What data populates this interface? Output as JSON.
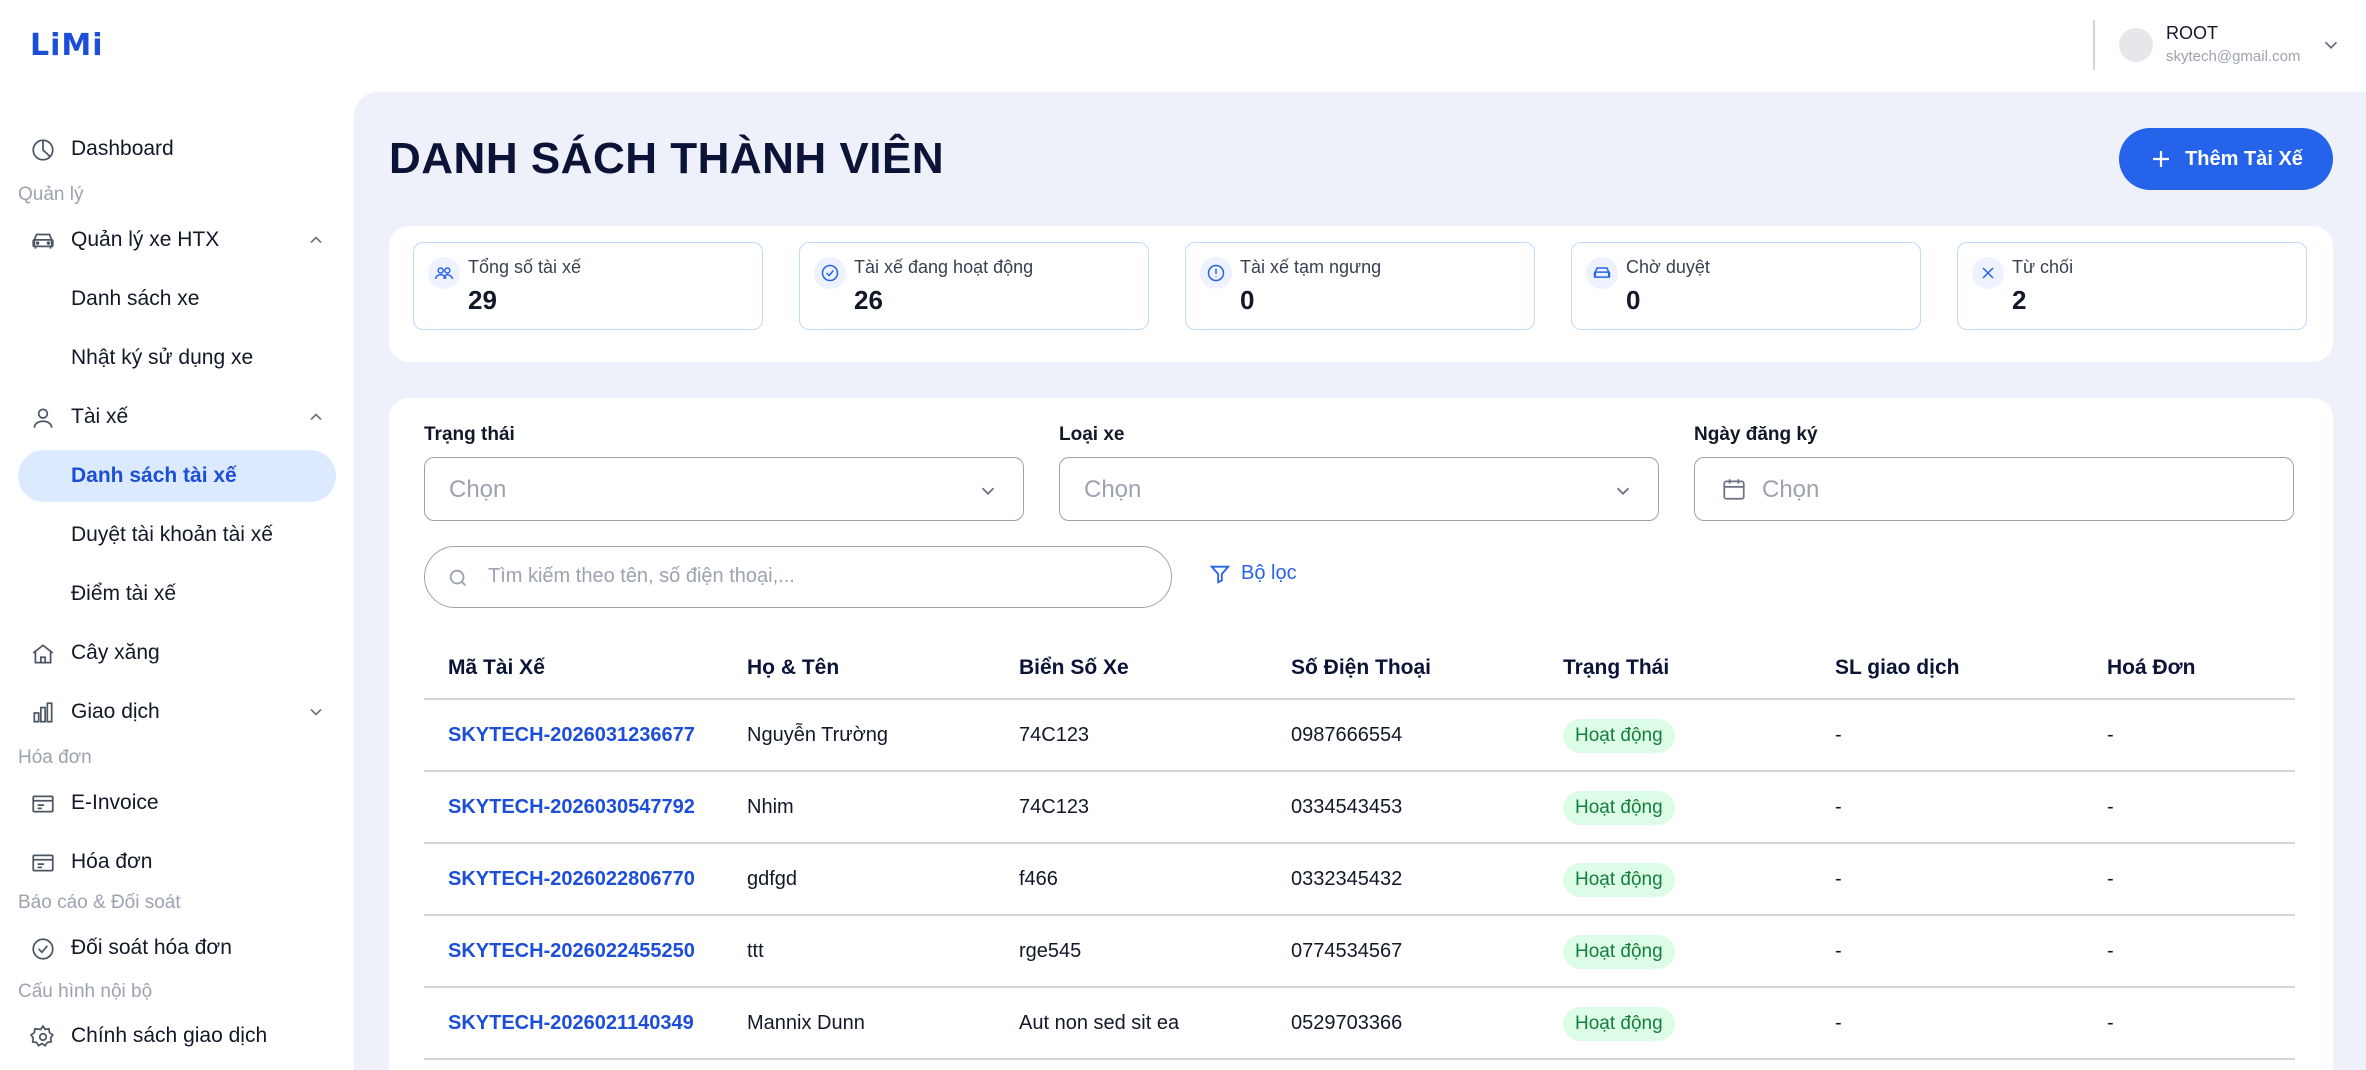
{
  "header": {
    "logo": "LiMi",
    "user_name": "ROOT",
    "user_email": "skytech@gmail.com"
  },
  "sidebar": {
    "dashboard": "Dashboard",
    "section_manage": "Quản lý",
    "vehicle_mgmt": "Quản lý xe HTX",
    "vehicle_list": "Danh sách xe",
    "vehicle_log": "Nhật ký sử dụng xe",
    "drivers": "Tài xế",
    "driver_list": "Danh sách tài xế",
    "driver_approve": "Duyệt tài khoản tài xế",
    "driver_points": "Điểm tài xế",
    "gas_station": "Cây xăng",
    "transactions": "Giao dịch",
    "section_invoice": "Hóa đơn",
    "einvoice": "E-Invoice",
    "invoice": "Hóa đơn",
    "section_report": "Báo cáo & Đối soát",
    "reconcile": "Đối soát hóa đơn",
    "section_config": "Cấu hình nội bộ",
    "policy": "Chính sách giao dịch"
  },
  "main": {
    "title": "DANH SÁCH THÀNH VIÊN",
    "add_button": "Thêm Tài Xế",
    "stats": [
      {
        "label": "Tổng số tài xế",
        "value": "29",
        "icon": "users-icon"
      },
      {
        "label": "Tài xế đang hoạt động",
        "value": "26",
        "icon": "check-badge-icon"
      },
      {
        "label": "Tài xế tạm ngưng",
        "value": "0",
        "icon": "pause-info-icon"
      },
      {
        "label": "Chờ duyệt",
        "value": "0",
        "icon": "car-icon"
      },
      {
        "label": "Từ chối",
        "value": "2",
        "icon": "close-icon"
      }
    ],
    "filters": {
      "status_label": "Trạng thái",
      "status_placeholder": "Chọn",
      "vehicle_type_label": "Loại xe",
      "vehicle_type_placeholder": "Chọn",
      "reg_date_label": "Ngày đăng ký",
      "reg_date_placeholder": "Chọn",
      "search_placeholder": "Tìm kiếm theo tên, số điện thoại,...",
      "filter_button": "Bộ lọc"
    },
    "table": {
      "headers": [
        "Mã Tài Xế",
        "Họ & Tên",
        "Biển Số Xe",
        "Số Điện Thoại",
        "Trạng Thái",
        "SL giao dịch",
        "Hoá Đơn"
      ],
      "rows": [
        {
          "code": "SKYTECH-2026031236677",
          "name": "Nguyễn Trường",
          "plate": "74C123",
          "phone": "0987666554",
          "status": "Hoạt động",
          "tx": "-",
          "invoice": "-"
        },
        {
          "code": "SKYTECH-2026030547792",
          "name": "Nhim",
          "plate": "74C123",
          "phone": "0334543453",
          "status": "Hoạt động",
          "tx": "-",
          "invoice": "-"
        },
        {
          "code": "SKYTECH-2026022806770",
          "name": "gdfgd",
          "plate": "f466",
          "phone": "0332345432",
          "status": "Hoạt động",
          "tx": "-",
          "invoice": "-"
        },
        {
          "code": "SKYTECH-2026022455250",
          "name": "ttt",
          "plate": "rge545",
          "phone": "0774534567",
          "status": "Hoạt động",
          "tx": "-",
          "invoice": "-"
        },
        {
          "code": "SKYTECH-2026021140349",
          "name": "Mannix Dunn",
          "plate": "Aut non sed sit ea",
          "phone": "0529703366",
          "status": "Hoạt động",
          "tx": "-",
          "invoice": "-"
        }
      ]
    }
  },
  "colors": {
    "primary": "#2563eb",
    "active_bg": "#dbeafe",
    "main_bg": "#eef1fa",
    "status_bg": "#dcfce7",
    "status_text": "#15803d"
  }
}
